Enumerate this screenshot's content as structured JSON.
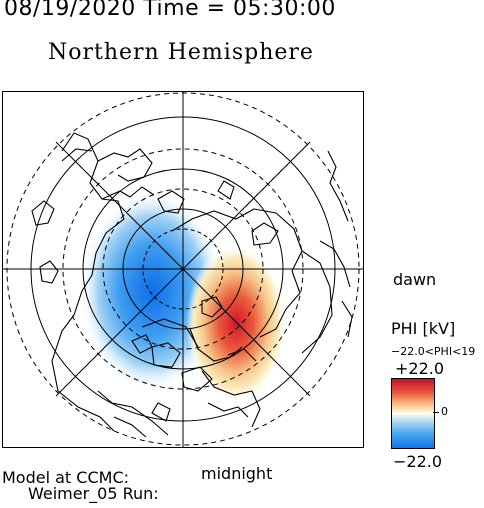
{
  "header": {
    "datetime": "08/19/2020 Time = 05:30:00",
    "title": "Northern Hemisphere"
  },
  "map": {
    "projection": "polar-stereographic-north",
    "field": "electric-potential",
    "noon_side": "top",
    "dawn_side": "right"
  },
  "labels": {
    "dawn": "dawn",
    "midnight": "midnight"
  },
  "colorbar": {
    "title": "PHI [kV]",
    "range_label": "−22.0<PHI<19",
    "max_label": "+22.0",
    "mid_label": "0",
    "min_label": "−22.0",
    "colors": {
      "max": "#c8102e",
      "mid": "#fffff0",
      "min": "#1473e6"
    }
  },
  "footer": {
    "line1": "Model at CCMC:",
    "line2": "Weimer_05 Run:"
  }
}
